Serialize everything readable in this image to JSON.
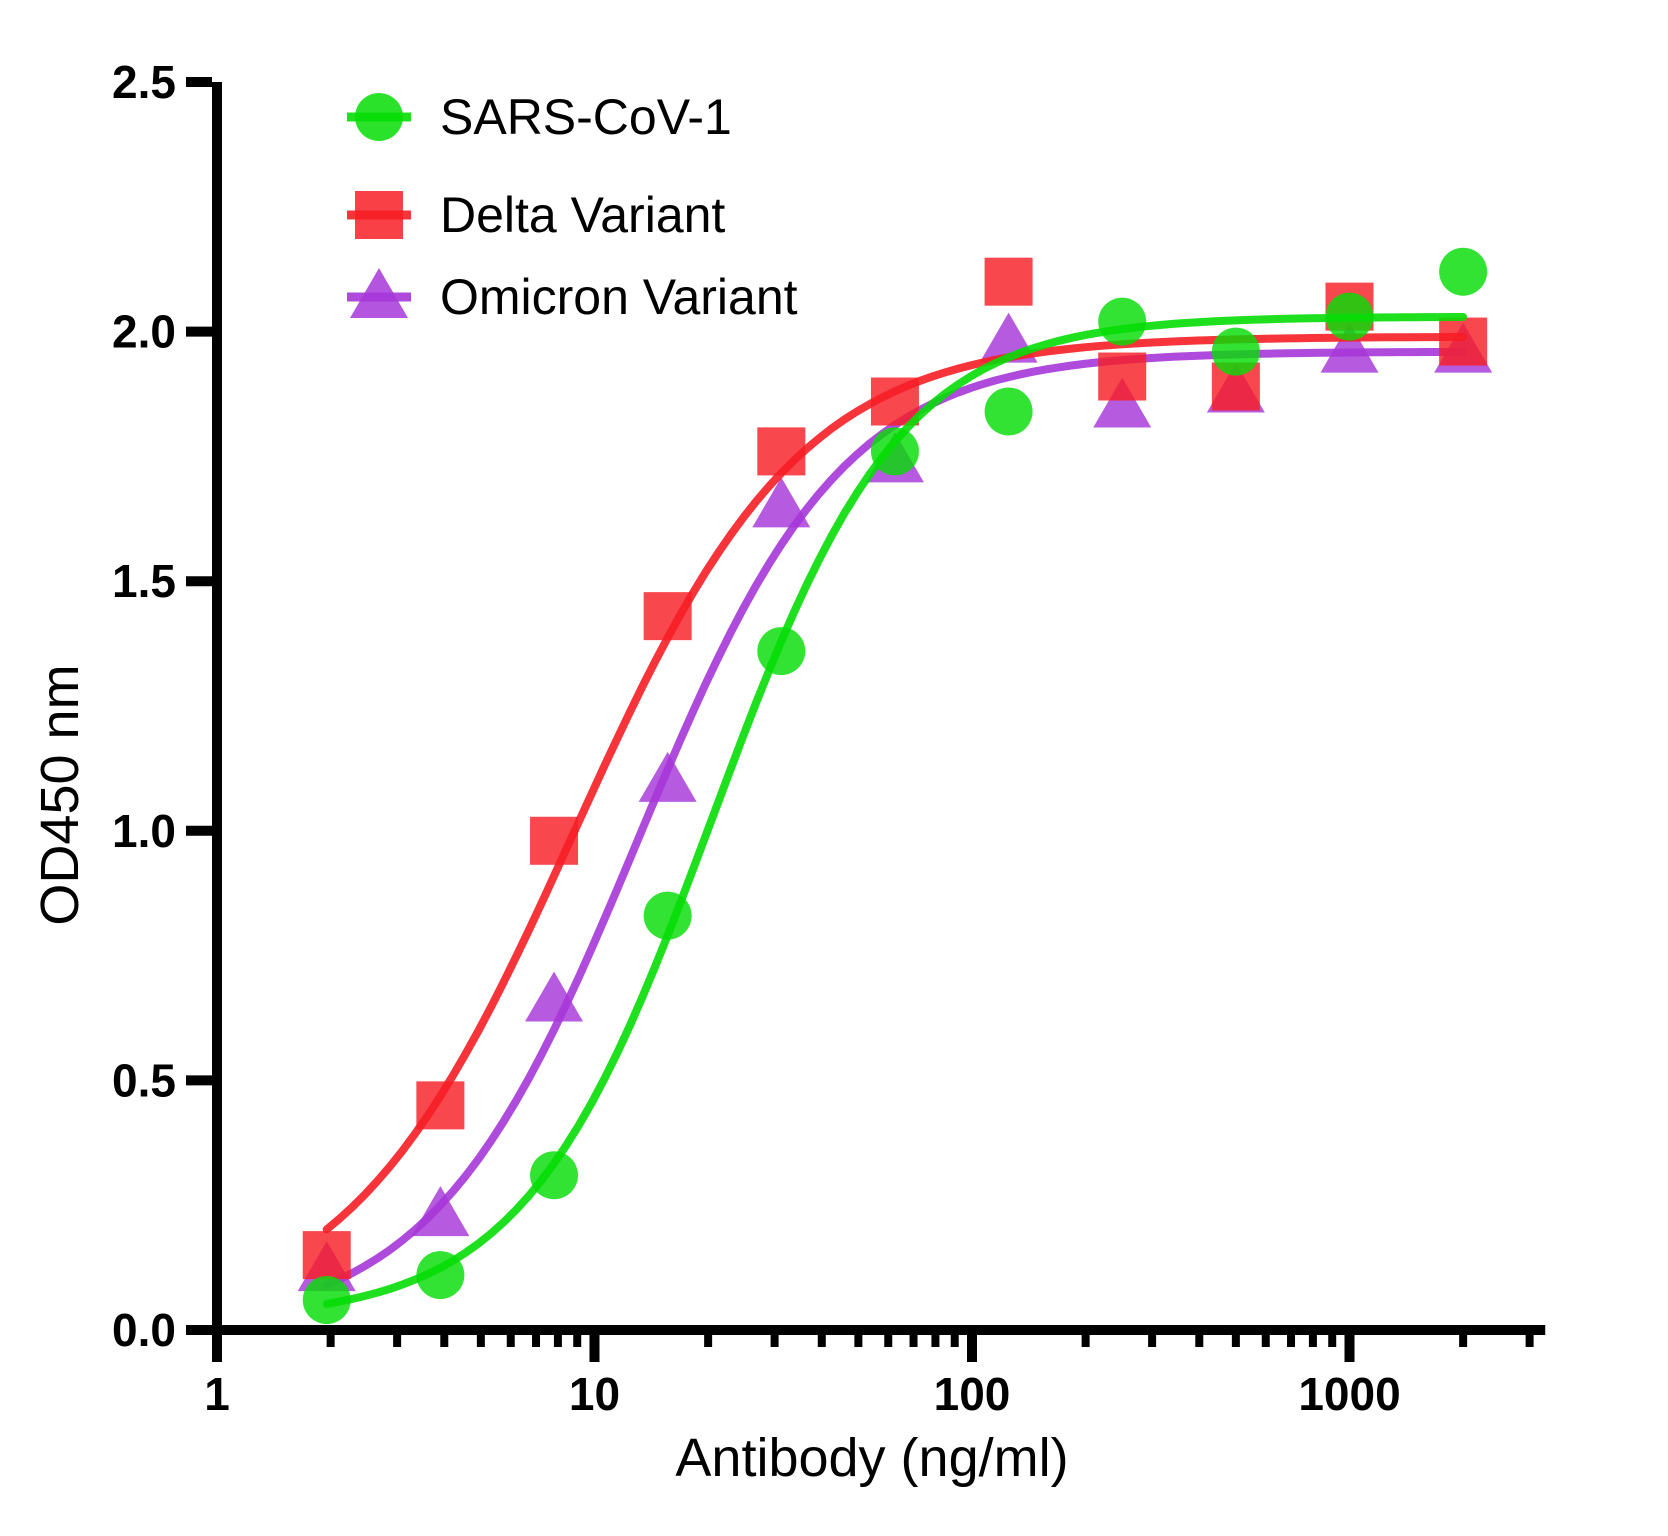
{
  "chart_data": {
    "type": "scatter",
    "title": "",
    "xlabel": "Antibody (ng/ml)",
    "ylabel": "OD450 nm",
    "x_scale": "log",
    "xlim": [
      1,
      3300
    ],
    "ylim": [
      0,
      2.5
    ],
    "grid": false,
    "legend_position": "top-left-inside",
    "x_major_ticks": [
      1,
      10,
      100,
      1000
    ],
    "x_major_tick_labels": [
      "1",
      "10",
      "100",
      "1000"
    ],
    "y_ticks": [
      0,
      0.5,
      1,
      1.5,
      2,
      2.5
    ],
    "y_tick_labels": [
      "0.0",
      "0.5",
      "1.0",
      "1.5",
      "2.0",
      "2.5"
    ],
    "x": [
      1.953,
      3.906,
      7.813,
      15.625,
      31.25,
      62.5,
      125,
      250,
      500,
      1000,
      2000
    ],
    "series": [
      {
        "name": "SARS-CoV-1",
        "marker": "circle",
        "color": "#06DD06",
        "values": [
          0.06,
          0.11,
          0.31,
          0.83,
          1.36,
          1.76,
          1.84,
          2.02,
          1.96,
          2.03,
          2.12
        ],
        "fit": {
          "bottom": 0.02,
          "top": 2.03,
          "ec50": 20.5,
          "hill": 1.75
        }
      },
      {
        "name": "Delta Variant",
        "marker": "square",
        "color": "#F71E26",
        "values": [
          0.15,
          0.45,
          0.98,
          1.43,
          1.76,
          1.86,
          2.1,
          1.91,
          1.89,
          2.05,
          1.98
        ],
        "fit": {
          "bottom": 0.0,
          "top": 1.99,
          "ec50": 8.8,
          "hill": 1.45
        }
      },
      {
        "name": "Omicron Variant",
        "marker": "triangle",
        "color": "#A637D8",
        "values": [
          0.12,
          0.23,
          0.66,
          1.1,
          1.65,
          1.74,
          1.98,
          1.85,
          1.88,
          1.96,
          1.96
        ],
        "fit": {
          "bottom": 0.0,
          "top": 1.96,
          "ec50": 13.0,
          "hill": 1.6
        }
      }
    ]
  }
}
